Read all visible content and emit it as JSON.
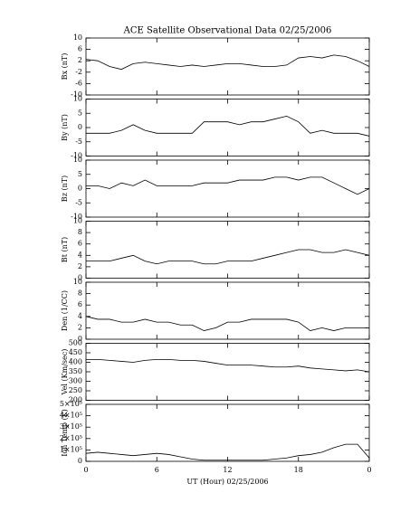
{
  "chart_data": [
    {
      "type": "line",
      "title": "ACE Satellite Observational Data   02/25/2006",
      "y_label": "Bx (nT)",
      "x": [
        0,
        1,
        2,
        3,
        4,
        5,
        6,
        7,
        8,
        9,
        10,
        11,
        12,
        13,
        14,
        15,
        16,
        17,
        18,
        19,
        20,
        21,
        22,
        23,
        24
      ],
      "series": [
        {
          "color": "#000000",
          "values": [
            2.5,
            2,
            0,
            -1,
            1,
            1.5,
            1,
            0.5,
            0,
            0.5,
            0,
            0.5,
            1,
            1,
            0.5,
            0,
            0,
            0.5,
            3,
            3.5,
            3,
            4,
            3.5,
            2,
            0
          ]
        }
      ],
      "xlim": [
        0,
        24
      ],
      "ylim": [
        -10,
        10
      ],
      "yticks": [
        -10,
        -6,
        -2,
        2,
        6,
        10
      ]
    },
    {
      "type": "line",
      "y_label": "By (nT)",
      "x": [
        0,
        1,
        2,
        3,
        4,
        5,
        6,
        7,
        8,
        9,
        10,
        11,
        12,
        13,
        14,
        15,
        16,
        17,
        18,
        19,
        20,
        21,
        22,
        23,
        24
      ],
      "series": [
        {
          "color": "#000000",
          "values": [
            -2,
            -2,
            -2,
            -1,
            1,
            -1,
            -2,
            -2,
            -2,
            -2,
            2,
            2,
            2,
            1,
            2,
            2,
            3,
            4,
            2,
            -2,
            -1,
            -2,
            -2,
            -2,
            -3
          ]
        }
      ],
      "xlim": [
        0,
        24
      ],
      "ylim": [
        -10,
        10
      ],
      "yticks": [
        -10,
        -5,
        0,
        5,
        10
      ]
    },
    {
      "type": "line",
      "y_label": "Bz (nT)",
      "x": [
        0,
        1,
        2,
        3,
        4,
        5,
        6,
        7,
        8,
        9,
        10,
        11,
        12,
        13,
        14,
        15,
        16,
        17,
        18,
        19,
        20,
        21,
        22,
        23,
        24
      ],
      "series": [
        {
          "color": "#000000",
          "values": [
            1,
            1,
            0,
            2,
            1,
            3,
            1,
            1,
            1,
            1,
            2,
            2,
            2,
            3,
            3,
            3,
            4,
            4,
            3,
            4,
            4,
            2,
            0,
            -2,
            0
          ]
        }
      ],
      "xlim": [
        0,
        24
      ],
      "ylim": [
        -10,
        10
      ],
      "yticks": [
        -10,
        -5,
        0,
        5,
        10
      ]
    },
    {
      "type": "line",
      "y_label": "Bt (nT)",
      "x": [
        0,
        1,
        2,
        3,
        4,
        5,
        6,
        7,
        8,
        9,
        10,
        11,
        12,
        13,
        14,
        15,
        16,
        17,
        18,
        19,
        20,
        21,
        22,
        23,
        24
      ],
      "series": [
        {
          "color": "#000000",
          "values": [
            3,
            3,
            3,
            3.5,
            4,
            3,
            2.5,
            3,
            3,
            3,
            2.5,
            2.5,
            3,
            3,
            3,
            3.5,
            4,
            4.5,
            5,
            5,
            4.5,
            4.5,
            5,
            4.5,
            4
          ]
        }
      ],
      "xlim": [
        0,
        24
      ],
      "ylim": [
        0,
        10
      ],
      "yticks": [
        0,
        2,
        4,
        6,
        8,
        10
      ]
    },
    {
      "type": "line",
      "y_label": "Den (1/CC)",
      "x": [
        0,
        1,
        2,
        3,
        4,
        5,
        6,
        7,
        8,
        9,
        10,
        11,
        12,
        13,
        14,
        15,
        16,
        17,
        18,
        19,
        20,
        21,
        22,
        23,
        24
      ],
      "series": [
        {
          "color": "#000000",
          "values": [
            4,
            3.5,
            3.5,
            3,
            3,
            3.5,
            3,
            3,
            2.5,
            2.5,
            1.5,
            2,
            3,
            3,
            3.5,
            3.5,
            3.5,
            3.5,
            3,
            1.5,
            2,
            1.5,
            2,
            2,
            2
          ]
        }
      ],
      "xlim": [
        0,
        24
      ],
      "ylim": [
        0,
        10
      ],
      "yticks": [
        0,
        2,
        4,
        6,
        8,
        10
      ]
    },
    {
      "type": "line",
      "y_label": "Vel (Km/sec)",
      "x": [
        0,
        1,
        2,
        3,
        4,
        5,
        6,
        7,
        8,
        9,
        10,
        11,
        12,
        13,
        14,
        15,
        16,
        17,
        18,
        19,
        20,
        21,
        22,
        23,
        24
      ],
      "series": [
        {
          "color": "#000000",
          "values": [
            415,
            415,
            410,
            405,
            400,
            410,
            415,
            415,
            410,
            410,
            405,
            395,
            385,
            385,
            385,
            380,
            375,
            375,
            380,
            370,
            365,
            360,
            355,
            360,
            350
          ]
        }
      ],
      "xlim": [
        0,
        24
      ],
      "ylim": [
        200,
        500
      ],
      "yticks": [
        200,
        250,
        300,
        350,
        400,
        450,
        500
      ]
    },
    {
      "type": "line",
      "y_label": "Ion Temp (K)",
      "x_label": "UT (Hour)   02/25/2006",
      "x": [
        0,
        1,
        2,
        3,
        4,
        5,
        6,
        7,
        8,
        9,
        10,
        11,
        12,
        13,
        14,
        15,
        16,
        17,
        18,
        19,
        20,
        21,
        22,
        23,
        24
      ],
      "series": [
        {
          "color": "#000000",
          "values": [
            70000,
            80000,
            70000,
            60000,
            50000,
            60000,
            70000,
            60000,
            40000,
            20000,
            10000,
            10000,
            10000,
            10000,
            10000,
            10000,
            20000,
            30000,
            50000,
            60000,
            80000,
            120000,
            150000,
            150000,
            30000
          ]
        }
      ],
      "xlim": [
        0,
        24
      ],
      "ylim": [
        0,
        500000
      ],
      "yticks": [
        0,
        {
          "value": 100000,
          "label": "1×10⁵"
        },
        {
          "value": 200000,
          "label": "2×10⁵"
        },
        {
          "value": 300000,
          "label": "3×10⁵"
        },
        {
          "value": 400000,
          "label": "4×10⁵"
        },
        {
          "value": 500000,
          "label": "5×10⁵"
        }
      ],
      "xticks": [
        0,
        6,
        12,
        18,
        {
          "value": 24,
          "label": "0"
        }
      ]
    }
  ]
}
